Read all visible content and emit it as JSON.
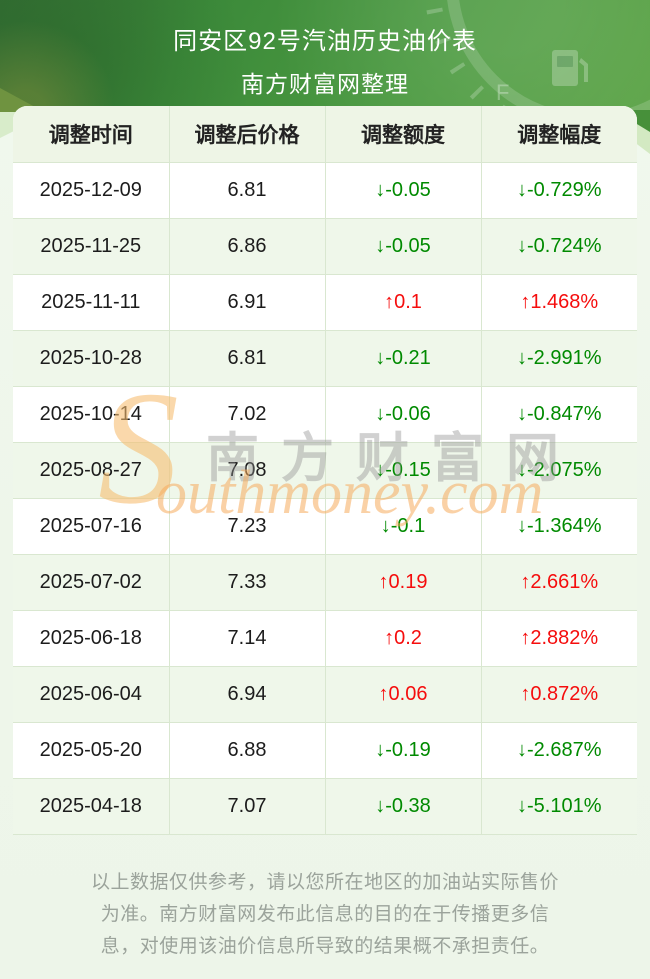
{
  "banner": {
    "title": "同安区92号汽油历史油价表",
    "subtitle": "南方财富网整理"
  },
  "table": {
    "headers": [
      "调整时间",
      "调整后价格",
      "调整额度",
      "调整幅度"
    ],
    "rows": [
      {
        "date": "2025-12-09",
        "price": "6.81",
        "change": "-0.05",
        "percent": "-0.729%",
        "direction": "down"
      },
      {
        "date": "2025-11-25",
        "price": "6.86",
        "change": "-0.05",
        "percent": "-0.724%",
        "direction": "down"
      },
      {
        "date": "2025-11-11",
        "price": "6.91",
        "change": "0.1",
        "percent": "1.468%",
        "direction": "up"
      },
      {
        "date": "2025-10-28",
        "price": "6.81",
        "change": "-0.21",
        "percent": "-2.991%",
        "direction": "down"
      },
      {
        "date": "2025-10-14",
        "price": "7.02",
        "change": "-0.06",
        "percent": "-0.847%",
        "direction": "down"
      },
      {
        "date": "2025-08-27",
        "price": "7.08",
        "change": "-0.15",
        "percent": "-2.075%",
        "direction": "down"
      },
      {
        "date": "2025-07-16",
        "price": "7.23",
        "change": "-0.1",
        "percent": "-1.364%",
        "direction": "down"
      },
      {
        "date": "2025-07-02",
        "price": "7.33",
        "change": "0.19",
        "percent": "2.661%",
        "direction": "up"
      },
      {
        "date": "2025-06-18",
        "price": "7.14",
        "change": "0.2",
        "percent": "2.882%",
        "direction": "up"
      },
      {
        "date": "2025-06-04",
        "price": "6.94",
        "change": "0.06",
        "percent": "0.872%",
        "direction": "up"
      },
      {
        "date": "2025-05-20",
        "price": "6.88",
        "change": "-0.19",
        "percent": "-2.687%",
        "direction": "down"
      },
      {
        "date": "2025-04-18",
        "price": "7.07",
        "change": "-0.38",
        "percent": "-5.101%",
        "direction": "down"
      }
    ]
  },
  "icons": {
    "up_arrow": "↑",
    "down_arrow": "↓",
    "gauge_full_label": "F"
  },
  "watermark": {
    "initial": "S",
    "cn": "南方财富网",
    "domain": "outhmoney.com"
  },
  "footer": {
    "disclaimer": "以上数据仅供参考，请以您所在地区的加油站实际售价为准。南方财富网发布此信息的目的在于传播更多信息，对使用该油价信息所导致的结果概不承担责任。"
  },
  "colors": {
    "up": "#f50d0d",
    "down": "#008a00",
    "banner_green": "#3c8a3a",
    "header_bg": "#eef5e6",
    "row_alt_bg": "#eff7ea",
    "border": "#d9e7d0",
    "watermark_orange": "#f7bc6e",
    "footer_text": "#9ba39b"
  }
}
